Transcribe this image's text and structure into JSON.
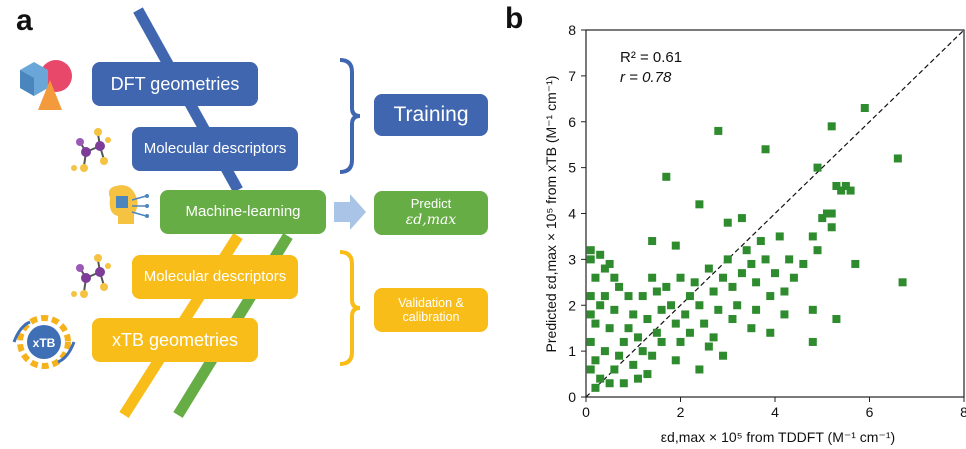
{
  "panel_a": {
    "letter": "a",
    "boxes": {
      "dft": "DFT geometries",
      "mol1": "Molecular descriptors",
      "ml": "Machine-learning",
      "mol2": "Molecular descriptors",
      "xtb": "xTB geometries",
      "training": "Training",
      "predict_line1": "Predict",
      "predict_line2": "εd,max",
      "validation": "Validation & calibration"
    },
    "icons": {
      "xtb_logo_text": "xTB"
    },
    "colors": {
      "blue": "#4066b0",
      "green": "#66ad45",
      "yellow": "#f8bd19",
      "arrow": "#a9c4e6"
    }
  },
  "panel_b": {
    "letter": "b"
  },
  "chart_data": {
    "type": "scatter",
    "title": "",
    "xlabel": "εd,max × 10⁵ from TDDFT (M⁻¹ cm⁻¹)",
    "ylabel": "Predicted εd,max × 10⁵ from xTB (M⁻¹ cm⁻¹)",
    "xlim": [
      0,
      8
    ],
    "ylim": [
      0,
      8
    ],
    "xticks": [
      "0",
      "2",
      "4",
      "6",
      "8"
    ],
    "yticks": [
      "0",
      "1",
      "2",
      "3",
      "4",
      "5",
      "6",
      "7",
      "8"
    ],
    "annotation_r2": "R² = 0.61",
    "annotation_r": "r = 0.78",
    "marker_color": "#2e8b2e",
    "diagonal": "y = x (dashed)",
    "points": [
      [
        0.1,
        3.2
      ],
      [
        0.1,
        3.0
      ],
      [
        0.3,
        3.1
      ],
      [
        0.4,
        2.8
      ],
      [
        0.5,
        2.9
      ],
      [
        0.2,
        2.6
      ],
      [
        0.6,
        2.6
      ],
      [
        0.1,
        2.2
      ],
      [
        0.3,
        2.0
      ],
      [
        0.1,
        1.8
      ],
      [
        0.2,
        1.6
      ],
      [
        0.5,
        1.5
      ],
      [
        0.1,
        1.2
      ],
      [
        0.4,
        1.0
      ],
      [
        0.2,
        0.8
      ],
      [
        0.1,
        0.6
      ],
      [
        0.3,
        0.4
      ],
      [
        0.2,
        0.2
      ],
      [
        0.5,
        0.3
      ],
      [
        0.6,
        0.6
      ],
      [
        0.7,
        0.9
      ],
      [
        0.8,
        1.2
      ],
      [
        0.9,
        1.5
      ],
      [
        0.6,
        1.9
      ],
      [
        0.9,
        2.2
      ],
      [
        1.0,
        1.8
      ],
      [
        1.1,
        1.3
      ],
      [
        1.2,
        1.0
      ],
      [
        1.0,
        0.7
      ],
      [
        1.3,
        0.5
      ],
      [
        1.4,
        0.9
      ],
      [
        1.5,
        1.4
      ],
      [
        1.3,
        1.7
      ],
      [
        1.6,
        1.9
      ],
      [
        1.5,
        2.3
      ],
      [
        1.4,
        2.6
      ],
      [
        1.7,
        2.4
      ],
      [
        1.8,
        2.0
      ],
      [
        1.9,
        1.6
      ],
      [
        2.0,
        1.2
      ],
      [
        2.1,
        1.8
      ],
      [
        2.2,
        2.2
      ],
      [
        2.0,
        2.6
      ],
      [
        2.3,
        2.5
      ],
      [
        2.4,
        2.0
      ],
      [
        2.5,
        1.6
      ],
      [
        2.6,
        2.8
      ],
      [
        2.7,
        2.3
      ],
      [
        2.8,
        1.9
      ],
      [
        2.9,
        2.6
      ],
      [
        3.0,
        3.0
      ],
      [
        3.1,
        2.4
      ],
      [
        3.2,
        2.0
      ],
      [
        3.3,
        2.7
      ],
      [
        3.4,
        3.2
      ],
      [
        3.5,
        2.9
      ],
      [
        3.6,
        2.5
      ],
      [
        3.7,
        3.4
      ],
      [
        3.8,
        3.0
      ],
      [
        3.9,
        2.2
      ],
      [
        4.0,
        2.7
      ],
      [
        4.1,
        3.5
      ],
      [
        4.2,
        2.3
      ],
      [
        4.3,
        3.0
      ],
      [
        4.4,
        2.6
      ],
      [
        4.6,
        2.9
      ],
      [
        4.8,
        1.9
      ],
      [
        4.9,
        3.2
      ],
      [
        5.1,
        4.0
      ],
      [
        5.2,
        3.7
      ],
      [
        5.3,
        4.6
      ],
      [
        5.4,
        4.5
      ],
      [
        5.5,
        4.6
      ],
      [
        5.6,
        4.5
      ],
      [
        5.2,
        4.0
      ],
      [
        5.0,
        3.9
      ],
      [
        4.9,
        5.0
      ],
      [
        4.8,
        3.5
      ],
      [
        5.2,
        5.9
      ],
      [
        5.9,
        6.3
      ],
      [
        6.6,
        5.2
      ],
      [
        6.7,
        2.5
      ],
      [
        5.7,
        2.9
      ],
      [
        5.3,
        1.7
      ],
      [
        4.8,
        1.2
      ],
      [
        3.8,
        5.4
      ],
      [
        2.8,
        5.8
      ],
      [
        1.7,
        4.8
      ],
      [
        1.9,
        3.3
      ],
      [
        1.4,
        3.4
      ],
      [
        2.4,
        4.2
      ],
      [
        3.0,
        3.8
      ],
      [
        3.3,
        3.9
      ],
      [
        0.8,
        0.3
      ],
      [
        1.1,
        0.4
      ],
      [
        1.9,
        0.8
      ],
      [
        2.4,
        0.6
      ],
      [
        2.9,
        0.9
      ],
      [
        2.7,
        1.3
      ],
      [
        3.5,
        1.5
      ],
      [
        0.4,
        2.2
      ],
      [
        0.7,
        2.4
      ],
      [
        1.2,
        2.2
      ],
      [
        1.6,
        1.2
      ],
      [
        2.2,
        1.4
      ],
      [
        2.6,
        1.1
      ],
      [
        3.1,
        1.7
      ],
      [
        3.6,
        1.9
      ],
      [
        3.9,
        1.4
      ],
      [
        4.2,
        1.8
      ]
    ]
  }
}
